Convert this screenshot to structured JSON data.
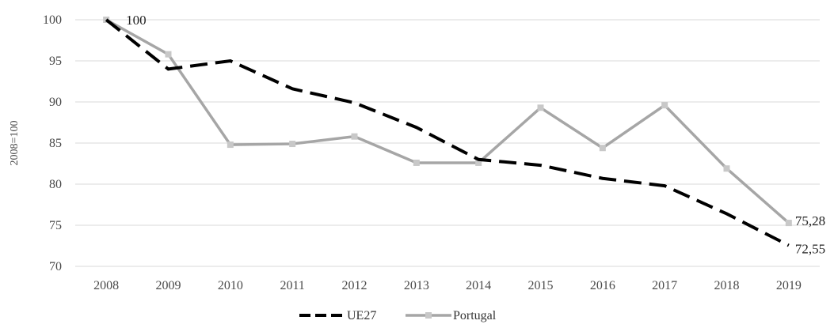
{
  "chart_data": {
    "type": "line",
    "title": "",
    "xlabel": "",
    "ylabel": "2008=100",
    "categories": [
      "2008",
      "2009",
      "2010",
      "2011",
      "2012",
      "2013",
      "2014",
      "2015",
      "2016",
      "2017",
      "2018",
      "2019"
    ],
    "ylim": [
      70,
      100
    ],
    "yticks": [
      70,
      75,
      80,
      85,
      90,
      95,
      100
    ],
    "grid": true,
    "legend_position": "bottom",
    "series": [
      {
        "name": "UE27",
        "color": "#000000",
        "style": "dashed",
        "values": [
          100,
          94.0,
          95.0,
          91.6,
          89.9,
          86.9,
          83.0,
          82.3,
          80.7,
          79.8,
          76.4,
          72.55
        ]
      },
      {
        "name": "Portugal",
        "color": "#a6a6a6",
        "style": "solid",
        "marker": "square",
        "values": [
          100,
          95.8,
          84.8,
          84.9,
          85.8,
          82.6,
          82.6,
          89.3,
          84.4,
          89.6,
          81.9,
          75.28
        ]
      }
    ],
    "data_labels": [
      {
        "series": "Portugal",
        "category": "2008",
        "text": "100"
      },
      {
        "series": "Portugal",
        "category": "2019",
        "text": "75,28"
      },
      {
        "series": "UE27",
        "category": "2019",
        "text": "72,55"
      }
    ]
  }
}
